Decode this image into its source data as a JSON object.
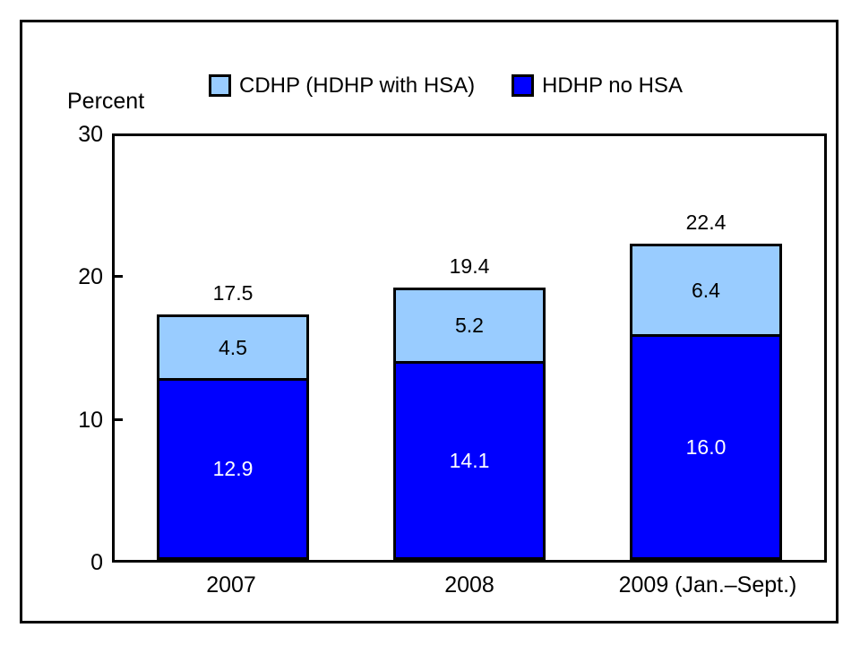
{
  "colors": {
    "cdhp_light_blue": "#99CCFF",
    "hdhp_dark_blue": "#0000FF",
    "border": "#000000",
    "background": "#FFFFFF",
    "dark_segment_text": "#FFFFFF"
  },
  "axis": {
    "title": "Percent",
    "ticks": [
      "30",
      "20",
      "10",
      "0"
    ]
  },
  "legend": [
    {
      "label": "CDHP (HDHP with HSA)",
      "color": "#99CCFF"
    },
    {
      "label": "HDHP no HSA",
      "color": "#0000FF"
    }
  ],
  "chart_data": {
    "type": "bar",
    "stacked": true,
    "title": "",
    "ylabel": "Percent",
    "xlabel": "",
    "ylim": [
      0,
      30
    ],
    "yticks": [
      0,
      10,
      20,
      30
    ],
    "grid": false,
    "legend_position": "top",
    "categories": [
      "2007",
      "2008",
      "2009 (Jan.–Sept.)"
    ],
    "series": [
      {
        "name": "HDHP no HSA",
        "color": "#0000FF",
        "values": [
          12.9,
          14.1,
          16.0
        ]
      },
      {
        "name": "CDHP (HDHP with HSA)",
        "color": "#99CCFF",
        "values": [
          4.5,
          5.2,
          6.4
        ]
      }
    ],
    "totals": [
      17.5,
      19.4,
      22.4
    ],
    "value_labels": {
      "totals": [
        "17.5",
        "19.4",
        "22.4"
      ],
      "hdhp_no_hsa": [
        "12.9",
        "14.1",
        "16.0"
      ],
      "cdhp": [
        "4.5",
        "5.2",
        "6.4"
      ]
    }
  }
}
